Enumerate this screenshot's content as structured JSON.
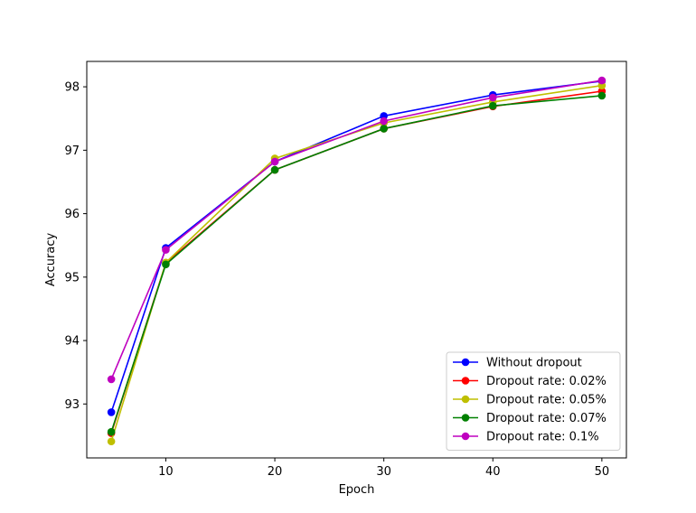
{
  "chart_data": {
    "type": "line",
    "title": "",
    "xlabel": "Epoch",
    "ylabel": "Accuracy",
    "x": [
      5,
      10,
      20,
      30,
      40,
      50
    ],
    "xlim": [
      2.75,
      52.25
    ],
    "ylim": [
      92.15,
      98.4
    ],
    "xticks": [
      10,
      20,
      30,
      40,
      50
    ],
    "yticks": [
      93,
      94,
      95,
      96,
      97,
      98
    ],
    "grid": false,
    "legend_position": "lower right",
    "series": [
      {
        "name": "Without dropout",
        "color": "#0000ff",
        "values": [
          92.87,
          95.46,
          96.82,
          97.54,
          97.87,
          98.09
        ]
      },
      {
        "name": "Dropout rate: 0.02%",
        "color": "#ff0000",
        "values": [
          92.54,
          95.22,
          96.69,
          97.34,
          97.69,
          97.93
        ]
      },
      {
        "name": "Dropout rate: 0.05%",
        "color": "#bfbf00",
        "values": [
          92.41,
          95.23,
          96.87,
          97.43,
          97.76,
          98.02
        ]
      },
      {
        "name": "Dropout rate: 0.07%",
        "color": "#008000",
        "values": [
          92.56,
          95.2,
          96.69,
          97.34,
          97.7,
          97.86
        ]
      },
      {
        "name": "Dropout rate: 0.1%",
        "color": "#bf00bf",
        "values": [
          93.39,
          95.43,
          96.82,
          97.46,
          97.83,
          98.1
        ]
      }
    ]
  }
}
